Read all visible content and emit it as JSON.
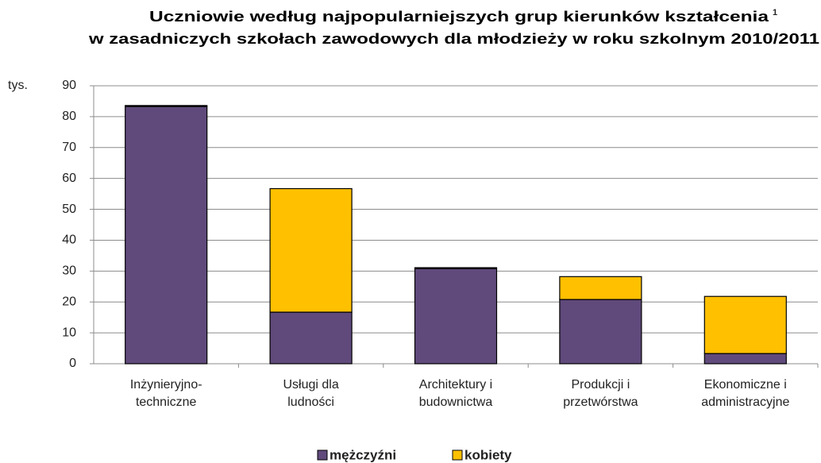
{
  "chart_data": {
    "type": "stacked_bar",
    "title": [
      "Uczniowie według najpopularniejszych grup kierunków kształcenia",
      "w zasadniczych szkołach zawodowych dla młodzieży w roku szkolnym 2010/2011"
    ],
    "title_footnote": "1",
    "y_unit": "tys.",
    "categories": [
      [
        "Inżynieryjno-",
        "techniczne"
      ],
      [
        "Usługi dla",
        "ludności"
      ],
      [
        "Architektury i",
        "budownictwa"
      ],
      [
        "Produkcji i",
        "przetwórstwa"
      ],
      [
        "Ekonomiczne i",
        "administracyjne"
      ]
    ],
    "series": [
      {
        "name": "mężczyźni",
        "color": "#604a7b",
        "values": [
          83.3,
          16.7,
          30.8,
          20.8,
          3.3
        ]
      },
      {
        "name": "kobiety",
        "color": "#ffc000",
        "values": [
          0.3,
          40.0,
          0.3,
          7.4,
          18.5
        ]
      }
    ],
    "ylim": [
      0,
      90
    ],
    "yticks": [
      0,
      10,
      20,
      30,
      40,
      50,
      60,
      70,
      80,
      90
    ],
    "grid": true
  }
}
